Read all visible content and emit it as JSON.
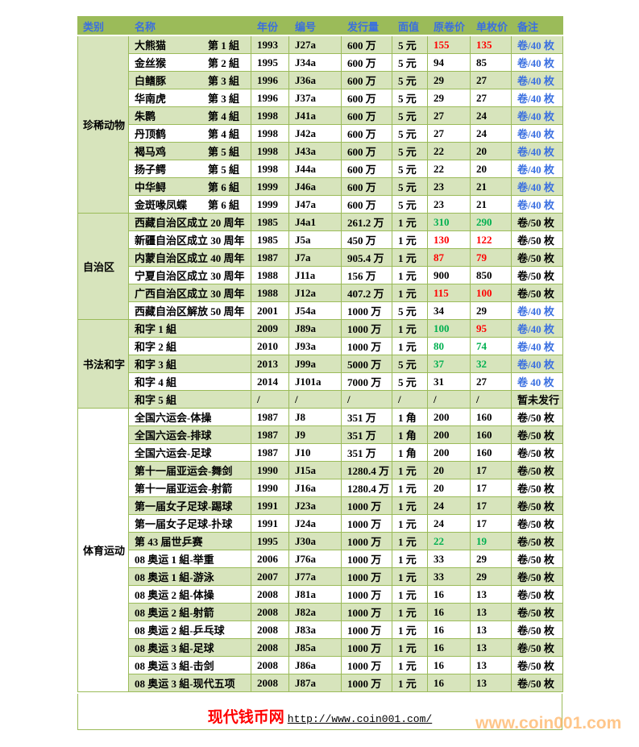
{
  "colors": {
    "header_bg": "#9bbb59",
    "row_alt": "#d7e4bc",
    "red": "#ff0000",
    "green": "#00b050",
    "blue": "#3a6fe0"
  },
  "headers": [
    "类别",
    "名称",
    "年份",
    "编号",
    "发行量",
    "面值",
    "原卷价",
    "单枚价",
    "备注"
  ],
  "categories": [
    {
      "name": "珍稀动物",
      "rows": [
        {
          "name": "大熊猫",
          "group": "第 1 組",
          "year": "1993",
          "code": "J27a",
          "issue": "600 万",
          "face": "5 元",
          "roll": "155",
          "single": "135",
          "note": "卷/40 枚",
          "roll_color": "red",
          "single_color": "red",
          "note_color": "blue"
        },
        {
          "name": "金丝猴",
          "group": "第 2 組",
          "year": "1995",
          "code": "J34a",
          "issue": "600 万",
          "face": "5 元",
          "roll": "94",
          "single": "85",
          "note": "卷/40 枚",
          "roll_color": "black",
          "single_color": "black",
          "note_color": "blue"
        },
        {
          "name": "白鳍豚",
          "group": "第 3 組",
          "year": "1996",
          "code": "J36a",
          "issue": "600 万",
          "face": "5 元",
          "roll": "29",
          "single": "27",
          "note": "卷/40 枚",
          "roll_color": "black",
          "single_color": "black",
          "note_color": "blue"
        },
        {
          "name": "华南虎",
          "group": "第 3 組",
          "year": "1996",
          "code": "J37a",
          "issue": "600 万",
          "face": "5 元",
          "roll": "29",
          "single": "27",
          "note": "卷/40 枚",
          "roll_color": "black",
          "single_color": "black",
          "note_color": "blue"
        },
        {
          "name": "朱鹮",
          "group": "第 4 組",
          "year": "1998",
          "code": "J41a",
          "issue": "600 万",
          "face": "5 元",
          "roll": "27",
          "single": "24",
          "note": "卷/40 枚",
          "roll_color": "black",
          "single_color": "black",
          "note_color": "blue"
        },
        {
          "name": "丹顶鹤",
          "group": "第 4 組",
          "year": "1998",
          "code": "J42a",
          "issue": "600 万",
          "face": "5 元",
          "roll": "27",
          "single": "24",
          "note": "卷/40 枚",
          "roll_color": "black",
          "single_color": "black",
          "note_color": "blue"
        },
        {
          "name": "褐马鸡",
          "group": "第 5 組",
          "year": "1998",
          "code": "J43a",
          "issue": "600 万",
          "face": "5 元",
          "roll": "22",
          "single": "20",
          "note": "卷/40 枚",
          "roll_color": "black",
          "single_color": "black",
          "note_color": "blue"
        },
        {
          "name": "扬子鳄",
          "group": "第 5 組",
          "year": "1998",
          "code": "J44a",
          "issue": "600 万",
          "face": "5 元",
          "roll": "22",
          "single": "20",
          "note": "卷/40 枚",
          "roll_color": "black",
          "single_color": "black",
          "note_color": "blue"
        },
        {
          "name": "中华鲟",
          "group": "第 6 組",
          "year": "1999",
          "code": "J46a",
          "issue": "600 万",
          "face": "5 元",
          "roll": "23",
          "single": "21",
          "note": "卷/40 枚",
          "roll_color": "black",
          "single_color": "black",
          "note_color": "blue"
        },
        {
          "name": "金斑喙凤蝶",
          "group": "第 6 組",
          "year": "1999",
          "code": "J47a",
          "issue": "600 万",
          "face": "5 元",
          "roll": "23",
          "single": "21",
          "note": "卷/40 枚",
          "roll_color": "black",
          "single_color": "black",
          "note_color": "blue"
        }
      ]
    },
    {
      "name": "自治区",
      "rows": [
        {
          "name": "西藏自治区成立 20 周年",
          "group": "",
          "year": "1985",
          "code": "J4a1",
          "issue": "261.2 万",
          "face": "1 元",
          "roll": "310",
          "single": "290",
          "note": "卷/50 枚",
          "roll_color": "green",
          "single_color": "green",
          "note_color": "black"
        },
        {
          "name": "新疆自治区成立 30 周年",
          "group": "",
          "year": "1985",
          "code": "J5a",
          "issue": "450 万",
          "face": "1 元",
          "roll": "130",
          "single": "122",
          "note": "卷/50 枚",
          "roll_color": "red",
          "single_color": "red",
          "note_color": "black"
        },
        {
          "name": "内蒙自治区成立 40 周年",
          "group": "",
          "year": "1987",
          "code": "J7a",
          "issue": "905.4 万",
          "face": "1 元",
          "roll": "87",
          "single": "79",
          "note": "卷/50 枚",
          "roll_color": "red",
          "single_color": "red",
          "note_color": "black"
        },
        {
          "name": "宁夏自治区成立 30 周年",
          "group": "",
          "year": "1988",
          "code": "J11a",
          "issue": "156 万",
          "face": "1 元",
          "roll": "900",
          "single": "850",
          "note": "卷/50 枚",
          "roll_color": "black",
          "single_color": "black",
          "note_color": "black"
        },
        {
          "name": "广西自治区成立 30 周年",
          "group": "",
          "year": "1988",
          "code": "J12a",
          "issue": "407.2 万",
          "face": "1 元",
          "roll": "115",
          "single": "100",
          "note": "卷/50 枚",
          "roll_color": "red",
          "single_color": "red",
          "note_color": "black"
        },
        {
          "name": "西藏自治区解放 50 周年",
          "group": "",
          "year": "2001",
          "code": "J54a",
          "issue": "1000 万",
          "face": "5 元",
          "roll": "34",
          "single": "29",
          "note": "卷/40 枚",
          "roll_color": "black",
          "single_color": "black",
          "note_color": "blue"
        }
      ]
    },
    {
      "name": "书法和字",
      "rows": [
        {
          "name": "和字 1 組",
          "group": "",
          "year": "2009",
          "code": "J89a",
          "issue": "1000 万",
          "face": "1 元",
          "roll": "100",
          "single": "95",
          "note": "卷/40 枚",
          "roll_color": "green",
          "single_color": "red",
          "note_color": "blue"
        },
        {
          "name": "和字 2 組",
          "group": "",
          "year": "2010",
          "code": "J93a",
          "issue": "1000 万",
          "face": "1 元",
          "roll": "80",
          "single": "74",
          "note": "卷/40 枚",
          "roll_color": "green",
          "single_color": "green",
          "note_color": "blue"
        },
        {
          "name": "和字 3 組",
          "group": "",
          "year": "2013",
          "code": "J99a",
          "issue": "5000 万",
          "face": "5 元",
          "roll": "37",
          "single": "32",
          "note": "卷/40 枚",
          "roll_color": "green",
          "single_color": "green",
          "note_color": "blue"
        },
        {
          "name": "和字 4 組",
          "group": "",
          "year": "2014",
          "code": "J101a",
          "issue": "7000 万",
          "face": "5 元",
          "roll": "31",
          "single": "27",
          "note": "卷 40 枚",
          "roll_color": "black",
          "single_color": "black",
          "note_color": "blue"
        },
        {
          "name": "和字 5 組",
          "group": "",
          "year": "/",
          "code": "/",
          "issue": "/",
          "face": "/",
          "roll": "/",
          "single": "/",
          "note": "暂未发行",
          "roll_color": "black",
          "single_color": "black",
          "note_color": "black"
        }
      ]
    },
    {
      "name": "体育运动",
      "rows": [
        {
          "name": "全国六运会-体操",
          "group": "",
          "year": "1987",
          "code": "J8",
          "issue": "351 万",
          "face": "1 角",
          "roll": "200",
          "single": "160",
          "note": "卷/50 枚",
          "roll_color": "black",
          "single_color": "black",
          "note_color": "black"
        },
        {
          "name": "全国六运会-排球",
          "group": "",
          "year": "1987",
          "code": "J9",
          "issue": "351 万",
          "face": "1 角",
          "roll": "200",
          "single": "160",
          "note": "卷/50 枚",
          "roll_color": "black",
          "single_color": "black",
          "note_color": "black"
        },
        {
          "name": "全国六运会-足球",
          "group": "",
          "year": "1987",
          "code": "J10",
          "issue": "351 万",
          "face": "1 角",
          "roll": "200",
          "single": "160",
          "note": "卷/50 枚",
          "roll_color": "black",
          "single_color": "black",
          "note_color": "black"
        },
        {
          "name": "第十一届亚运会-舞剑",
          "group": "",
          "year": "1990",
          "code": "J15a",
          "issue": "1280.4 万",
          "face": "1 元",
          "roll": "20",
          "single": "17",
          "note": "卷/50 枚",
          "roll_color": "black",
          "single_color": "black",
          "note_color": "black"
        },
        {
          "name": "第十一届亚运会-射箭",
          "group": "",
          "year": "1990",
          "code": "J16a",
          "issue": "1280.4 万",
          "face": "1 元",
          "roll": "20",
          "single": "17",
          "note": "卷/50 枚",
          "roll_color": "black",
          "single_color": "black",
          "note_color": "black"
        },
        {
          "name": "第一届女子足球-踢球",
          "group": "",
          "year": "1991",
          "code": "J23a",
          "issue": "1000 万",
          "face": "1 元",
          "roll": "24",
          "single": "17",
          "note": "卷/50 枚",
          "roll_color": "black",
          "single_color": "black",
          "note_color": "black"
        },
        {
          "name": "第一届女子足球-扑球",
          "group": "",
          "year": "1991",
          "code": "J24a",
          "issue": "1000 万",
          "face": "1 元",
          "roll": "24",
          "single": "17",
          "note": "卷/50 枚",
          "roll_color": "black",
          "single_color": "black",
          "note_color": "black"
        },
        {
          "name": "第 43 届世乒赛",
          "group": "",
          "year": "1995",
          "code": "J30a",
          "issue": "1000 万",
          "face": "1 元",
          "roll": "22",
          "single": "19",
          "note": "卷/50 枚",
          "roll_color": "green",
          "single_color": "green",
          "note_color": "black"
        },
        {
          "name": "08 奥运 1 組-举重",
          "group": "",
          "year": "2006",
          "code": "J76a",
          "issue": "1000 万",
          "face": "1 元",
          "roll": "33",
          "single": "29",
          "note": "卷/50 枚",
          "roll_color": "black",
          "single_color": "black",
          "note_color": "black"
        },
        {
          "name": "08 奥运 1 組-游泳",
          "group": "",
          "year": "2007",
          "code": "J77a",
          "issue": "1000 万",
          "face": "1 元",
          "roll": "33",
          "single": "29",
          "note": "卷/50 枚",
          "roll_color": "black",
          "single_color": "black",
          "note_color": "black"
        },
        {
          "name": "08 奥运 2 組-体操",
          "group": "",
          "year": "2008",
          "code": "J81a",
          "issue": "1000 万",
          "face": "1 元",
          "roll": "16",
          "single": "13",
          "note": "卷/50 枚",
          "roll_color": "black",
          "single_color": "black",
          "note_color": "black"
        },
        {
          "name": "08 奥运 2 組-射箭",
          "group": "",
          "year": "2008",
          "code": "J82a",
          "issue": "1000 万",
          "face": "1 元",
          "roll": "16",
          "single": "13",
          "note": "卷/50 枚",
          "roll_color": "black",
          "single_color": "black",
          "note_color": "black"
        },
        {
          "name": "08 奥运 2 組-乒乓球",
          "group": "",
          "year": "2008",
          "code": "J83a",
          "issue": "1000 万",
          "face": "1 元",
          "roll": "16",
          "single": "13",
          "note": "卷/50 枚",
          "roll_color": "black",
          "single_color": "black",
          "note_color": "black"
        },
        {
          "name": "08 奥运 3 組-足球",
          "group": "",
          "year": "2008",
          "code": "J85a",
          "issue": "1000 万",
          "face": "1 元",
          "roll": "16",
          "single": "13",
          "note": "卷/50 枚",
          "roll_color": "black",
          "single_color": "black",
          "note_color": "black"
        },
        {
          "name": "08 奥运 3 組-击剑",
          "group": "",
          "year": "2008",
          "code": "J86a",
          "issue": "1000 万",
          "face": "1 元",
          "roll": "16",
          "single": "13",
          "note": "卷/50 枚",
          "roll_color": "black",
          "single_color": "black",
          "note_color": "black"
        },
        {
          "name": "08 奥运 3 組-现代五项",
          "group": "",
          "year": "2008",
          "code": "J87a",
          "issue": "1000 万",
          "face": "1 元",
          "roll": "16",
          "single": "13",
          "note": "卷/50 枚",
          "roll_color": "black",
          "single_color": "black",
          "note_color": "black"
        }
      ]
    }
  ],
  "footer": {
    "site_name": "现代钱币网",
    "url": "http://www.coin001.com/"
  },
  "watermark": "www.coin001.com"
}
